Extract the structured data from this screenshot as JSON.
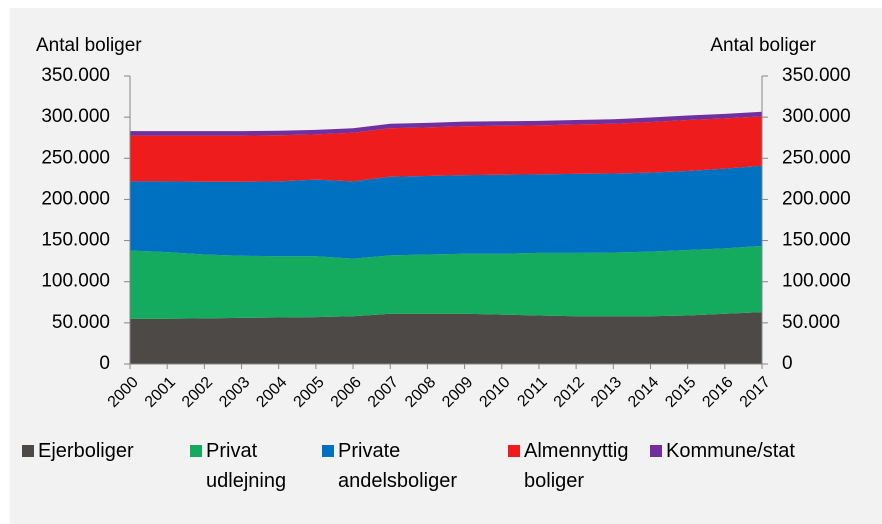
{
  "chart_data": {
    "type": "stacked-area",
    "y_axis_title": "Antal boliger",
    "y2_axis_title": "Antal boliger",
    "x": [
      2000,
      2001,
      2002,
      2003,
      2004,
      2005,
      2006,
      2007,
      2008,
      2009,
      2010,
      2011,
      2012,
      2013,
      2014,
      2015,
      2016,
      2017
    ],
    "xlim": [
      2000,
      2017
    ],
    "ylim": [
      0,
      350000
    ],
    "yticks": [
      0,
      {
        "value": 50000,
        "label": "50.000"
      },
      {
        "value": 100000,
        "label": "100.000"
      },
      {
        "value": 150000,
        "label": "150.000"
      },
      {
        "value": 200000,
        "label": "200.000"
      },
      {
        "value": 250000,
        "label": "250.000"
      },
      {
        "value": 300000,
        "label": "300.000"
      },
      {
        "value": 350000,
        "label": "350.000"
      }
    ],
    "y2lim": [
      0,
      350000
    ],
    "y2ticks": [
      0,
      {
        "value": 50000,
        "label": "50.000"
      },
      {
        "value": 100000,
        "label": "100.000"
      },
      {
        "value": 150000,
        "label": "150.000"
      },
      {
        "value": 200000,
        "label": "200.000"
      },
      {
        "value": 250000,
        "label": "250.000"
      },
      {
        "value": 300000,
        "label": "300.000"
      },
      {
        "value": 350000,
        "label": "350.000"
      }
    ],
    "series": [
      {
        "name": "Ejerboliger",
        "color": "#4d4946",
        "values": [
          55000,
          55000,
          55500,
          56000,
          56500,
          57000,
          58000,
          61000,
          61000,
          61000,
          60000,
          59000,
          58000,
          58000,
          58000,
          59000,
          61000,
          63000
        ]
      },
      {
        "name": "Privat udlejning",
        "color": "#14ab5e",
        "values": [
          83000,
          81000,
          77500,
          75500,
          74500,
          74000,
          70000,
          71000,
          72000,
          73000,
          74000,
          76000,
          77000,
          77500,
          78500,
          79500,
          79500,
          80500
        ]
      },
      {
        "name": "Private andelsboliger",
        "color": "#0070c0",
        "values": [
          84000,
          86000,
          88500,
          90000,
          91000,
          93000,
          94000,
          95500,
          95500,
          95500,
          96000,
          95500,
          96000,
          96000,
          96000,
          96000,
          97000,
          97500
        ]
      },
      {
        "name": "Almennyttig boliger",
        "color": "#ee1c1c",
        "values": [
          55500,
          55500,
          56000,
          56000,
          56000,
          55000,
          59000,
          59000,
          59000,
          59500,
          59500,
          59500,
          60000,
          60500,
          61500,
          62000,
          61000,
          60000
        ]
      },
      {
        "name": "Kommune/stat",
        "color": "#7030a0",
        "values": [
          5500,
          5500,
          5500,
          5500,
          5500,
          5500,
          5500,
          5500,
          5500,
          5500,
          5500,
          5500,
          5500,
          5500,
          5500,
          5500,
          5500,
          5500
        ]
      }
    ]
  }
}
